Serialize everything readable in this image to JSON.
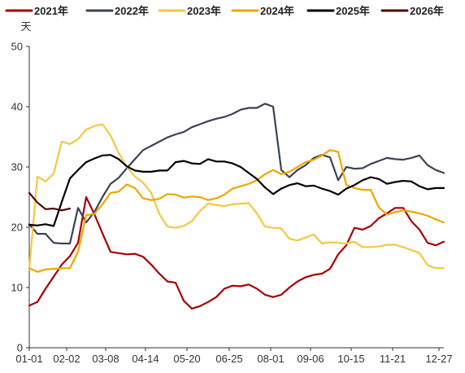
{
  "chart_data": {
    "type": "line",
    "ylabel": "天",
    "ylim": [
      0,
      50
    ],
    "yticks": [
      "0",
      "10",
      "20",
      "30",
      "40",
      "50"
    ],
    "x_range": [
      0,
      51
    ],
    "xticks": [
      {
        "pos": 0,
        "label": "01-01"
      },
      {
        "pos": 4.6,
        "label": "02-02"
      },
      {
        "pos": 9.4,
        "label": "03-08"
      },
      {
        "pos": 14.3,
        "label": "04-14"
      },
      {
        "pos": 19.4,
        "label": "05-20"
      },
      {
        "pos": 24.6,
        "label": "06-25"
      },
      {
        "pos": 29.7,
        "label": "08-01"
      },
      {
        "pos": 34.6,
        "label": "09-06"
      },
      {
        "pos": 39.6,
        "label": "10-15"
      },
      {
        "pos": 44.7,
        "label": "11-21"
      },
      {
        "pos": 50.4,
        "label": "12-27"
      }
    ],
    "legend_position": "top",
    "series": [
      {
        "name": "2021年",
        "color": "#a80000",
        "x": [
          0,
          1,
          2,
          3,
          4,
          5,
          6,
          7,
          8,
          9,
          10,
          11,
          12,
          13,
          14,
          15,
          16,
          17,
          18,
          19,
          20,
          21,
          22,
          23,
          24,
          25,
          26,
          27,
          28,
          29,
          30,
          31,
          32,
          33,
          34,
          35,
          36,
          37,
          38,
          39,
          40,
          41,
          42,
          43,
          44,
          45,
          46,
          47,
          48,
          49,
          50,
          51
        ],
        "values": [
          7.0,
          7.6,
          9.8,
          11.8,
          13.8,
          15.2,
          17.4,
          25.0,
          22.2,
          19.0,
          15.9,
          15.7,
          15.5,
          15.6,
          15.1,
          13.8,
          12.3,
          11.0,
          10.8,
          7.8,
          6.5,
          6.9,
          7.6,
          8.4,
          9.8,
          10.3,
          10.2,
          10.5,
          9.8,
          8.8,
          8.4,
          8.8,
          10.0,
          11.0,
          11.7,
          12.1,
          12.3,
          13.1,
          15.5,
          17.0,
          19.9,
          19.6,
          20.2,
          21.5,
          22.3,
          23.2,
          23.2,
          21.0,
          19.6,
          17.4,
          17.0,
          17.6
        ]
      },
      {
        "name": "2022年",
        "color": "#3b4252",
        "x": [
          0,
          1,
          2,
          3,
          4,
          5,
          6,
          7,
          8,
          9,
          10,
          11,
          12,
          13,
          14,
          15,
          16,
          17,
          18,
          19,
          20,
          21,
          22,
          23,
          24,
          25,
          26,
          27,
          28,
          29,
          30,
          31,
          32,
          33,
          34,
          35,
          36,
          37,
          38,
          39,
          40,
          41,
          42,
          43,
          44,
          45,
          46,
          47,
          48,
          49,
          50,
          51
        ],
        "values": [
          20.5,
          18.9,
          18.9,
          17.4,
          17.3,
          17.3,
          23.2,
          20.8,
          22.5,
          25.0,
          27.2,
          28.2,
          29.8,
          31.3,
          32.8,
          33.5,
          34.2,
          34.9,
          35.4,
          35.8,
          36.6,
          37.1,
          37.6,
          38.0,
          38.3,
          38.8,
          39.5,
          39.8,
          39.8,
          40.5,
          40.0,
          29.5,
          28.3,
          29.5,
          30.3,
          31.5,
          32.0,
          31.6,
          27.8,
          30.0,
          29.7,
          29.8,
          30.5,
          31.0,
          31.5,
          31.3,
          31.2,
          31.5,
          31.9,
          30.3,
          29.5,
          29.0
        ]
      },
      {
        "name": "2023年",
        "color": "#f5c842",
        "x": [
          0,
          1,
          2,
          3,
          4,
          5,
          6,
          7,
          8,
          9,
          10,
          11,
          12,
          13,
          14,
          15,
          16,
          17,
          18,
          19,
          20,
          21,
          22,
          23,
          24,
          25,
          26,
          27,
          28,
          29,
          30,
          31,
          32,
          33,
          34,
          35,
          36,
          37,
          38,
          39,
          40,
          41,
          42,
          43,
          44,
          45,
          46,
          47,
          48,
          49,
          50,
          51
        ],
        "values": [
          13.0,
          28.4,
          27.6,
          28.9,
          34.2,
          33.8,
          34.6,
          36.2,
          36.8,
          37.1,
          35.2,
          32.3,
          30.0,
          28.4,
          27.4,
          25.7,
          22.2,
          20.1,
          19.9,
          20.2,
          21.0,
          22.7,
          23.9,
          23.7,
          23.5,
          23.8,
          23.9,
          24.0,
          22.3,
          20.1,
          19.9,
          19.8,
          18.1,
          17.8,
          18.3,
          18.8,
          17.3,
          17.5,
          17.4,
          17.3,
          17.6,
          16.7,
          16.7,
          16.8,
          17.1,
          17.1,
          16.7,
          16.2,
          15.7,
          13.7,
          13.2,
          13.2
        ]
      },
      {
        "name": "2024年",
        "color": "#f0a500",
        "x": [
          0,
          1,
          2,
          3,
          4,
          5,
          6,
          7,
          8,
          9,
          10,
          11,
          12,
          13,
          14,
          15,
          16,
          17,
          18,
          19,
          20,
          21,
          22,
          23,
          24,
          25,
          26,
          27,
          28,
          29,
          30,
          31,
          32,
          33,
          34,
          35,
          36,
          37,
          38,
          39,
          40,
          41,
          42,
          43,
          44,
          45,
          46,
          47,
          48,
          49,
          50,
          51
        ],
        "values": [
          13.2,
          12.6,
          13.0,
          13.1,
          13.2,
          13.2,
          15.9,
          22.0,
          22.2,
          23.8,
          25.7,
          25.9,
          27.1,
          26.5,
          24.8,
          24.5,
          24.7,
          25.5,
          25.4,
          24.9,
          25.1,
          25.0,
          24.5,
          24.8,
          25.4,
          26.4,
          26.8,
          27.2,
          27.8,
          28.8,
          29.5,
          28.8,
          29.2,
          30.0,
          30.8,
          31.2,
          31.9,
          32.8,
          32.5,
          27.0,
          26.5,
          26.2,
          26.2,
          23.3,
          22.1,
          22.5,
          22.8,
          22.6,
          22.3,
          21.9,
          21.3,
          20.8
        ]
      },
      {
        "name": "2025年",
        "color": "#000000",
        "x": [
          0,
          1,
          2,
          3,
          4,
          5,
          6,
          7,
          8,
          9,
          10,
          11,
          12,
          13,
          14,
          15,
          16,
          17,
          18,
          19,
          20,
          21,
          22,
          23,
          24,
          25,
          26,
          27,
          28,
          29,
          30,
          31,
          32,
          33,
          34,
          35,
          36,
          37,
          38,
          39,
          40,
          41,
          42,
          43,
          44,
          45,
          46,
          47,
          48,
          49,
          50,
          51
        ],
        "values": [
          20.4,
          20.3,
          20.5,
          20.2,
          24.2,
          28.1,
          29.5,
          30.8,
          31.4,
          31.9,
          32.0,
          31.3,
          30.1,
          29.4,
          29.2,
          29.2,
          29.4,
          29.4,
          30.8,
          31.0,
          30.6,
          30.5,
          31.3,
          30.9,
          30.9,
          30.6,
          30.0,
          29.0,
          28.0,
          26.6,
          25.5,
          26.4,
          27.0,
          27.3,
          26.8,
          26.9,
          26.4,
          26.0,
          25.4,
          26.4,
          27.0,
          27.8,
          28.3,
          28.0,
          27.2,
          27.5,
          27.7,
          27.6,
          26.8,
          26.3,
          26.5,
          26.5
        ]
      },
      {
        "name": "2026年",
        "color": "#4a0a0a",
        "x": [
          0,
          1,
          2,
          3,
          4,
          5
        ],
        "values": [
          25.7,
          24.1,
          23.0,
          23.1,
          22.8,
          23.1
        ]
      }
    ]
  }
}
